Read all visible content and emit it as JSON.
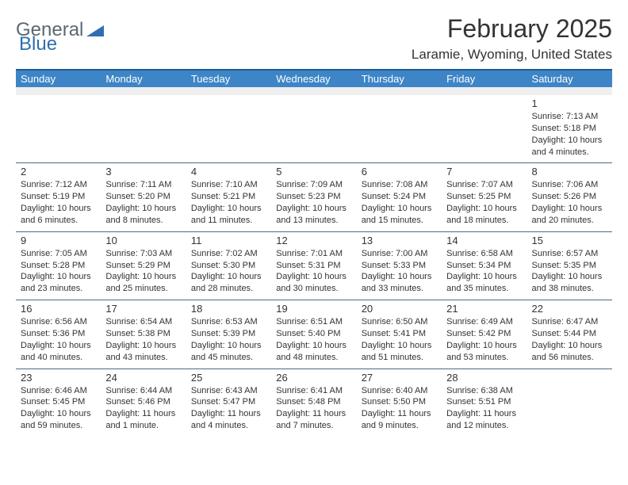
{
  "logo": {
    "word1": "General",
    "word2": "Blue"
  },
  "header": {
    "title": "February 2025",
    "location": "Laramie, Wyoming, United States"
  },
  "colors": {
    "header_bar": "#3d85c6",
    "top_divider": "#1e5a92",
    "row_divider": "#4a6a88",
    "blank_row": "#efefef",
    "logo_gray": "#5d6770",
    "logo_blue": "#2f6fb0",
    "text": "#333333"
  },
  "daynames": [
    "Sunday",
    "Monday",
    "Tuesday",
    "Wednesday",
    "Thursday",
    "Friday",
    "Saturday"
  ],
  "labels": {
    "sunrise": "Sunrise:",
    "sunset": "Sunset:",
    "daylight": "Daylight:"
  },
  "weeks": [
    [
      {
        "empty": true
      },
      {
        "empty": true
      },
      {
        "empty": true
      },
      {
        "empty": true
      },
      {
        "empty": true
      },
      {
        "empty": true
      },
      {
        "day": "1",
        "sunrise": "7:13 AM",
        "sunset": "5:18 PM",
        "daylight": "10 hours and 4 minutes."
      }
    ],
    [
      {
        "day": "2",
        "sunrise": "7:12 AM",
        "sunset": "5:19 PM",
        "daylight": "10 hours and 6 minutes."
      },
      {
        "day": "3",
        "sunrise": "7:11 AM",
        "sunset": "5:20 PM",
        "daylight": "10 hours and 8 minutes."
      },
      {
        "day": "4",
        "sunrise": "7:10 AM",
        "sunset": "5:21 PM",
        "daylight": "10 hours and 11 minutes."
      },
      {
        "day": "5",
        "sunrise": "7:09 AM",
        "sunset": "5:23 PM",
        "daylight": "10 hours and 13 minutes."
      },
      {
        "day": "6",
        "sunrise": "7:08 AM",
        "sunset": "5:24 PM",
        "daylight": "10 hours and 15 minutes."
      },
      {
        "day": "7",
        "sunrise": "7:07 AM",
        "sunset": "5:25 PM",
        "daylight": "10 hours and 18 minutes."
      },
      {
        "day": "8",
        "sunrise": "7:06 AM",
        "sunset": "5:26 PM",
        "daylight": "10 hours and 20 minutes."
      }
    ],
    [
      {
        "day": "9",
        "sunrise": "7:05 AM",
        "sunset": "5:28 PM",
        "daylight": "10 hours and 23 minutes."
      },
      {
        "day": "10",
        "sunrise": "7:03 AM",
        "sunset": "5:29 PM",
        "daylight": "10 hours and 25 minutes."
      },
      {
        "day": "11",
        "sunrise": "7:02 AM",
        "sunset": "5:30 PM",
        "daylight": "10 hours and 28 minutes."
      },
      {
        "day": "12",
        "sunrise": "7:01 AM",
        "sunset": "5:31 PM",
        "daylight": "10 hours and 30 minutes."
      },
      {
        "day": "13",
        "sunrise": "7:00 AM",
        "sunset": "5:33 PM",
        "daylight": "10 hours and 33 minutes."
      },
      {
        "day": "14",
        "sunrise": "6:58 AM",
        "sunset": "5:34 PM",
        "daylight": "10 hours and 35 minutes."
      },
      {
        "day": "15",
        "sunrise": "6:57 AM",
        "sunset": "5:35 PM",
        "daylight": "10 hours and 38 minutes."
      }
    ],
    [
      {
        "day": "16",
        "sunrise": "6:56 AM",
        "sunset": "5:36 PM",
        "daylight": "10 hours and 40 minutes."
      },
      {
        "day": "17",
        "sunrise": "6:54 AM",
        "sunset": "5:38 PM",
        "daylight": "10 hours and 43 minutes."
      },
      {
        "day": "18",
        "sunrise": "6:53 AM",
        "sunset": "5:39 PM",
        "daylight": "10 hours and 45 minutes."
      },
      {
        "day": "19",
        "sunrise": "6:51 AM",
        "sunset": "5:40 PM",
        "daylight": "10 hours and 48 minutes."
      },
      {
        "day": "20",
        "sunrise": "6:50 AM",
        "sunset": "5:41 PM",
        "daylight": "10 hours and 51 minutes."
      },
      {
        "day": "21",
        "sunrise": "6:49 AM",
        "sunset": "5:42 PM",
        "daylight": "10 hours and 53 minutes."
      },
      {
        "day": "22",
        "sunrise": "6:47 AM",
        "sunset": "5:44 PM",
        "daylight": "10 hours and 56 minutes."
      }
    ],
    [
      {
        "day": "23",
        "sunrise": "6:46 AM",
        "sunset": "5:45 PM",
        "daylight": "10 hours and 59 minutes."
      },
      {
        "day": "24",
        "sunrise": "6:44 AM",
        "sunset": "5:46 PM",
        "daylight": "11 hours and 1 minute."
      },
      {
        "day": "25",
        "sunrise": "6:43 AM",
        "sunset": "5:47 PM",
        "daylight": "11 hours and 4 minutes."
      },
      {
        "day": "26",
        "sunrise": "6:41 AM",
        "sunset": "5:48 PM",
        "daylight": "11 hours and 7 minutes."
      },
      {
        "day": "27",
        "sunrise": "6:40 AM",
        "sunset": "5:50 PM",
        "daylight": "11 hours and 9 minutes."
      },
      {
        "day": "28",
        "sunrise": "6:38 AM",
        "sunset": "5:51 PM",
        "daylight": "11 hours and 12 minutes."
      },
      {
        "empty": true
      }
    ]
  ]
}
